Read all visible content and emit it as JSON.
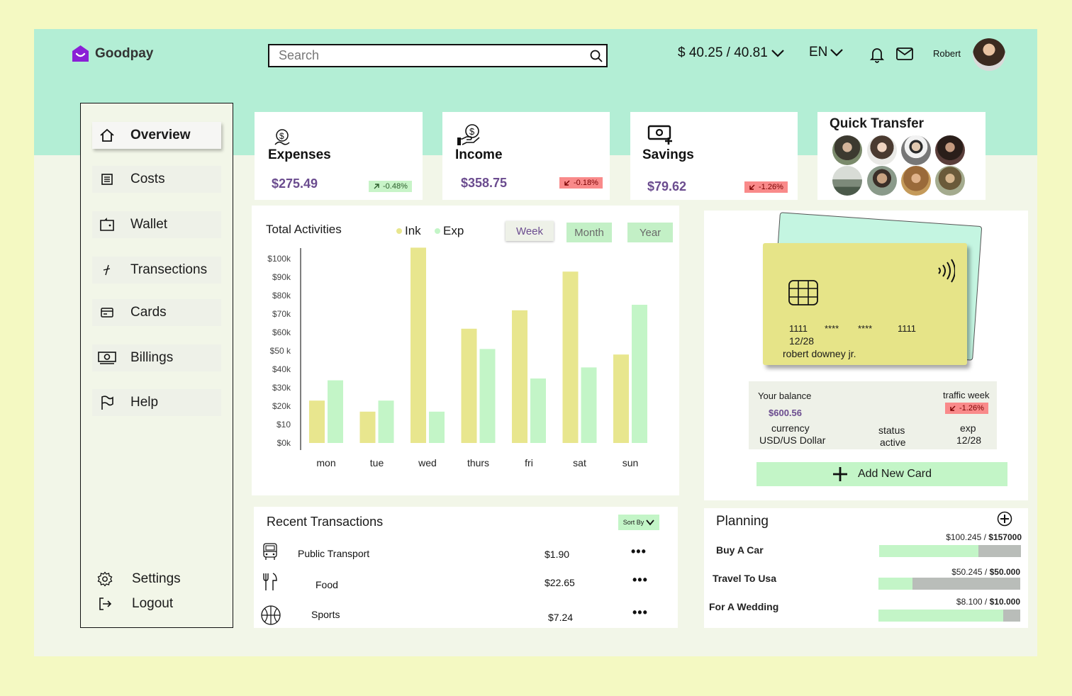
{
  "brand": {
    "name": "Goodpay"
  },
  "search": {
    "placeholder": "Search"
  },
  "header": {
    "rate": "$ 40.25 / 40.81",
    "lang": "EN",
    "user": "Robert"
  },
  "sidebar": {
    "items": [
      {
        "label": "Overview",
        "icon": "home-icon"
      },
      {
        "label": "Costs",
        "icon": "receipt-icon"
      },
      {
        "label": "Wallet",
        "icon": "wallet-icon"
      },
      {
        "label": "Transections",
        "icon": "transactions-icon"
      },
      {
        "label": "Cards",
        "icon": "card-icon"
      },
      {
        "label": "Billings",
        "icon": "cash-icon"
      },
      {
        "label": "Help",
        "icon": "flag-icon"
      }
    ],
    "settings": "Settings",
    "logout": "Logout"
  },
  "stats": {
    "expenses": {
      "title": "Expenses",
      "value": "$275.49",
      "change": "-0.48%"
    },
    "income": {
      "title": "Income",
      "value": "$358.75",
      "change": "-0.18%"
    },
    "savings": {
      "title": "Savings",
      "value": "$79.62",
      "change": "-1.26%"
    }
  },
  "quick_transfer": {
    "title": "Quick Transfer"
  },
  "activities": {
    "title": "Total Activities",
    "periods": [
      "Week",
      "Month",
      "Year"
    ]
  },
  "chart_data": {
    "type": "bar",
    "title": "Total Activities",
    "categories": [
      "mon",
      "tue",
      "wed",
      "thurs",
      "fri",
      "sat",
      "sun"
    ],
    "series": [
      {
        "name": "Ink",
        "color": "#e8e68e",
        "values": [
          23,
          17,
          106,
          62,
          72,
          93,
          48
        ]
      },
      {
        "name": "Exp",
        "color": "#c3f5c7",
        "values": [
          34,
          23,
          17,
          51,
          35,
          41,
          75
        ]
      }
    ],
    "y_ticks": [
      "$0k",
      "$10",
      "$20k",
      "$30k",
      "$40k",
      "$50 k",
      "$60k",
      "$70k",
      "$80k",
      "$90k",
      "$100k"
    ],
    "ylim": [
      0,
      110
    ],
    "legend": "top"
  },
  "card": {
    "number": [
      "1111",
      "****",
      "****",
      "1111"
    ],
    "expiry": "12/28",
    "holder": "robert downey jr.",
    "balance_label": "Your balance",
    "balance": "$600.56",
    "traffic_label": "traffic week",
    "traffic": "-1.26%",
    "currency_label": "currency",
    "currency": "USD/US Dollar",
    "status_label": "status",
    "status": "active",
    "exp_label": "exp",
    "exp": "12/28",
    "add_label": "Add New Card"
  },
  "transactions": {
    "title": "Recent Transactions",
    "sort_label": "Sort By",
    "items": [
      {
        "name": "Public Transport",
        "amount": "$1.90",
        "icon": "bus-icon"
      },
      {
        "name": "Food",
        "amount": "$22.65",
        "icon": "fork-knife-icon"
      },
      {
        "name": "Sports",
        "amount": "$7.24",
        "icon": "basketball-icon"
      }
    ]
  },
  "planning": {
    "title": "Planning",
    "items": [
      {
        "label": "Buy A Car",
        "current": "$100.245",
        "target": "$157000",
        "progress": 0.7
      },
      {
        "label": "Travel To Usa",
        "current": "$50.245",
        "target": "$50.000",
        "progress": 0.24
      },
      {
        "label": "For A Wedding",
        "current": "$8.100",
        "target": "$10.000",
        "progress": 0.88
      }
    ]
  }
}
